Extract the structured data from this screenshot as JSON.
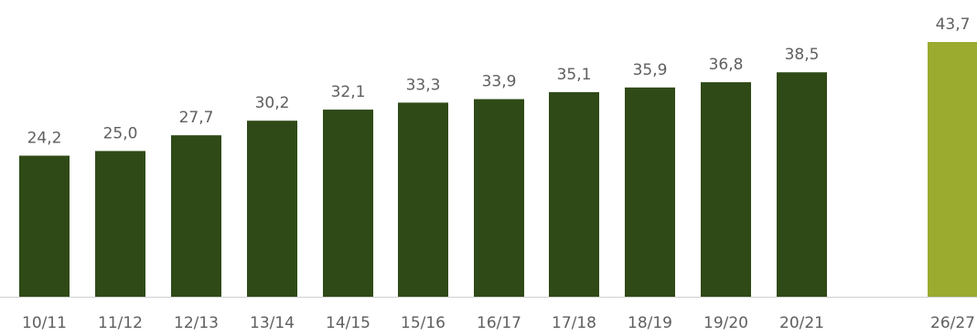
{
  "chart_data": {
    "type": "bar",
    "categories": [
      "10/11",
      "11/12",
      "12/13",
      "13/14",
      "14/15",
      "15/16",
      "16/17",
      "17/18",
      "18/19",
      "19/20",
      "20/21",
      "26/27"
    ],
    "values": [
      24.2,
      25.0,
      27.7,
      30.2,
      32.1,
      33.3,
      33.9,
      35.1,
      35.9,
      36.8,
      38.5,
      43.7
    ],
    "value_labels": [
      "24,2",
      "25,0",
      "27,7",
      "30,2",
      "32,1",
      "33,3",
      "33,9",
      "35,1",
      "35,9",
      "36,8",
      "38,5",
      "43,7"
    ],
    "title": "",
    "xlabel": "",
    "ylabel": "",
    "ylim": [
      0,
      43.7
    ],
    "grid": false,
    "colors": {
      "actual": "#2f4a17",
      "projection": "#9aab2f",
      "label_text": "#5f5f5f",
      "axis_line": "#d0d0d0"
    },
    "highlight_index": 11
  }
}
